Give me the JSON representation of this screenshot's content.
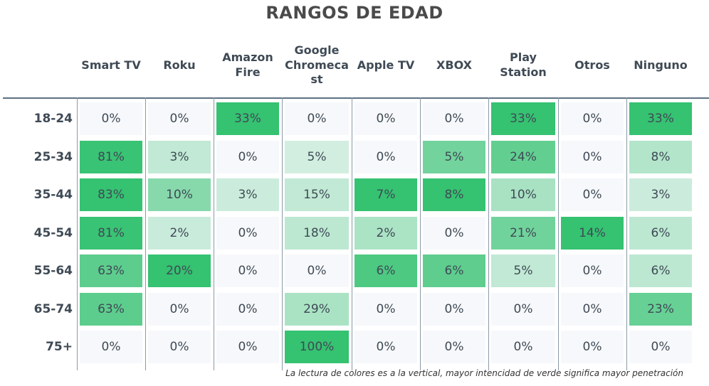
{
  "chart_data": {
    "type": "table",
    "title": "RANGOS DE EDAD",
    "columns": [
      {
        "label": "Smart TV",
        "lines": [
          "Smart TV"
        ]
      },
      {
        "label": "Roku",
        "lines": [
          "Roku"
        ]
      },
      {
        "label": "Amazon Fire",
        "lines": [
          "Amazon",
          "Fire"
        ]
      },
      {
        "label": "Google Chromecast",
        "lines": [
          "Google",
          "Chromeca",
          "st"
        ]
      },
      {
        "label": "Apple TV",
        "lines": [
          "Apple TV"
        ]
      },
      {
        "label": "XBOX",
        "lines": [
          "XBOX"
        ]
      },
      {
        "label": "Play Station",
        "lines": [
          "Play",
          "Station"
        ]
      },
      {
        "label": "Otros",
        "lines": [
          "Otros"
        ]
      },
      {
        "label": "Ninguno",
        "lines": [
          "Ninguno"
        ]
      }
    ],
    "rows": [
      "18-24",
      "25-34",
      "35-44",
      "45-54",
      "55-64",
      "65-74",
      "75+"
    ],
    "values": [
      [
        0,
        0,
        33,
        0,
        0,
        0,
        33,
        0,
        33
      ],
      [
        81,
        3,
        0,
        5,
        0,
        5,
        24,
        0,
        8
      ],
      [
        83,
        10,
        3,
        15,
        7,
        8,
        10,
        0,
        3
      ],
      [
        81,
        2,
        0,
        18,
        2,
        0,
        21,
        14,
        6
      ],
      [
        63,
        20,
        0,
        0,
        6,
        6,
        5,
        0,
        6
      ],
      [
        63,
        0,
        0,
        29,
        0,
        0,
        0,
        0,
        23
      ],
      [
        0,
        0,
        0,
        100,
        0,
        0,
        0,
        0,
        0
      ]
    ],
    "unit": "%",
    "color_scale": {
      "low": "#f7f8fb",
      "high": "#35c271",
      "direction": "vertical"
    },
    "note": "La lectura de colores es a la vertical, mayor intencidad de verde significa mayor penetración"
  }
}
